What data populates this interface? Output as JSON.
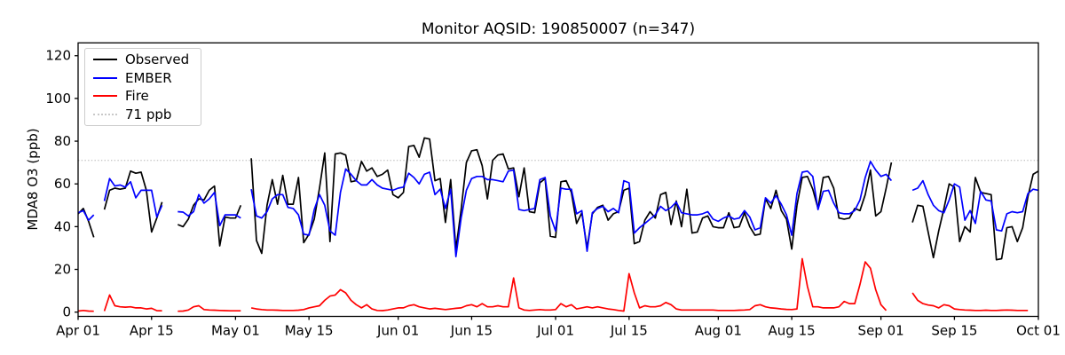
{
  "chart_data": {
    "type": "line",
    "title": "Monitor AQSID: 190850007 (n=347)",
    "ylabel": "MDA8 O3 (ppb)",
    "xlabel": "",
    "grid": false,
    "legend_position": "upper left",
    "total_days": 183,
    "ylim": [
      -2,
      126
    ],
    "y_ticks": [
      0,
      20,
      40,
      60,
      80,
      100,
      120
    ],
    "x_tick_labels": [
      "Apr 01",
      "Apr 15",
      "May 01",
      "May 15",
      "Jun 01",
      "Jun 15",
      "Jul 01",
      "Jul 15",
      "Aug 01",
      "Aug 15",
      "Sep 01",
      "Sep 15",
      "Oct 01"
    ],
    "x_tick_days": [
      0,
      14,
      30,
      44,
      61,
      75,
      91,
      105,
      122,
      136,
      153,
      167,
      183
    ],
    "threshold": {
      "label": "71 ppb",
      "value": 71,
      "color": "#c8c8c8"
    },
    "legend": {
      "items": [
        "Observed",
        "EMBER",
        "Fire",
        "71 ppb"
      ]
    },
    "series": [
      {
        "name": "Observed",
        "color": "#000000",
        "segments": [
          {
            "start_day": 0,
            "values": [
              46,
              48.5,
              42.5,
              35
            ]
          },
          {
            "start_day": 5,
            "values": [
              48,
              57,
              58,
              57.5,
              58,
              66,
              65,
              65.5,
              57,
              37.5,
              44,
              51.5
            ]
          },
          {
            "start_day": 19,
            "values": [
              41,
              40,
              43.5,
              50,
              53,
              52.5,
              57,
              59,
              31,
              44.5,
              44,
              44,
              50
            ]
          },
          {
            "start_day": 33,
            "values": [
              72,
              33.5,
              27.5,
              50,
              62,
              50.5,
              64,
              50.5,
              50.5,
              63,
              32.5,
              36.5,
              43.5,
              58,
              74.5,
              33,
              74,
              74.5,
              73.5,
              61,
              61.5,
              70.5,
              66,
              67.5,
              63.5,
              64.5,
              66.5,
              55,
              53.5,
              56,
              77.5,
              78,
              72.5,
              81.5,
              81,
              61.5,
              62.5,
              42,
              62,
              29.5,
              48,
              70,
              75.5,
              76,
              68.5,
              53,
              71,
              73.5,
              74,
              67,
              67.5,
              54,
              67.5,
              47,
              46.5,
              60.5,
              62.5,
              35.5,
              35,
              61,
              61.5,
              56,
              41.5,
              46.5,
              30,
              46,
              49,
              50,
              43,
              46,
              47,
              57,
              58,
              32,
              33,
              43,
              47,
              44,
              55,
              56,
              41,
              52,
              40,
              57.5,
              37,
              37.5,
              44,
              45,
              40,
              39.5,
              39.5,
              46.5,
              39.5,
              40,
              46.5,
              40,
              36,
              36.5,
              53,
              48.5,
              57,
              47.5,
              43.5,
              29.5,
              50,
              63,
              63.5,
              57.5,
              48.5,
              63,
              63.5,
              58,
              44,
              43.5,
              44,
              48.5,
              47.5,
              55,
              66.5,
              45,
              47,
              58,
              70
            ]
          },
          {
            "start_day": 159,
            "values": [
              42,
              50,
              49.5,
              37.5,
              25.5,
              38,
              48.5,
              60,
              58.5,
              33,
              40,
              37.5,
              63,
              56,
              55.5,
              55,
              24.5,
              25,
              39.5,
              40,
              33,
              39.5,
              54,
              64.5,
              66
            ]
          }
        ]
      },
      {
        "name": "EMBER",
        "color": "#0000ff",
        "segments": [
          {
            "start_day": 0,
            "values": [
              46.5,
              47.5,
              43,
              45.5
            ]
          },
          {
            "start_day": 5,
            "values": [
              52,
              62.5,
              59,
              59.5,
              58.5,
              61,
              53.5,
              57,
              57,
              57,
              44.5,
              50
            ]
          },
          {
            "start_day": 19,
            "values": [
              47,
              46.8,
              45,
              47,
              55,
              51,
              53,
              56,
              40.5,
              45.5,
              45.5,
              45.5,
              44
            ]
          },
          {
            "start_day": 33,
            "values": [
              57.5,
              45,
              44,
              47,
              53,
              55,
              55,
              49,
              48.5,
              45.5,
              36.5,
              36,
              48,
              55,
              50,
              38,
              36,
              56,
              67,
              64.5,
              61.5,
              59.5,
              59.5,
              62,
              59.5,
              58,
              57.5,
              57,
              58,
              58.5,
              65,
              63,
              60,
              64.5,
              65.5,
              55,
              57.5,
              48.5,
              57.5,
              26,
              44,
              57,
              62.5,
              63.5,
              63.5,
              62,
              62,
              61.5,
              61,
              66,
              66.5,
              48,
              47.5,
              48,
              48.5,
              62,
              63,
              45,
              38,
              58,
              57.5,
              57.5,
              46,
              47.5,
              28.5,
              46.5,
              48.5,
              49.5,
              47,
              48.5,
              46.5,
              61.5,
              60.5,
              37,
              39.5,
              41.5,
              43.5,
              45.5,
              49.5,
              47.5,
              49,
              51.5,
              46.5,
              46,
              45.5,
              45.5,
              46,
              47,
              43.5,
              42.5,
              44,
              45,
              43.5,
              44,
              47.5,
              44.5,
              38.5,
              39.5,
              53.5,
              51,
              54.5,
              50.5,
              45.5,
              36,
              55.5,
              65.5,
              66,
              63.5,
              48,
              56.5,
              57,
              51,
              46.5,
              46,
              46,
              47.5,
              52.5,
              63,
              70.5,
              66.5,
              63.5,
              64.5,
              61.5
            ]
          },
          {
            "start_day": 159,
            "values": [
              57,
              58,
              61.5,
              55,
              50,
              47.5,
              46.5,
              52.5,
              60,
              58.5,
              43,
              47.5,
              41.5,
              56.5,
              52.5,
              52,
              38.5,
              38,
              46,
              47,
              46.5,
              47,
              55.5,
              57.5,
              57
            ]
          }
        ]
      },
      {
        "name": "Fire",
        "color": "#ff0000",
        "segments": [
          {
            "start_day": 0,
            "values": [
              0.5,
              0.8,
              0.5,
              0.4
            ]
          },
          {
            "start_day": 5,
            "values": [
              0.5,
              8,
              3,
              2.5,
              2.3,
              2.5,
              2,
              2,
              1.5,
              1.8,
              0.7,
              0.6
            ]
          },
          {
            "start_day": 19,
            "values": [
              0.4,
              0.5,
              1,
              2.5,
              3,
              1.2,
              1,
              0.9,
              0.8,
              0.7,
              0.6,
              0.6,
              0.6
            ]
          },
          {
            "start_day": 33,
            "values": [
              2,
              1.5,
              1.2,
              1,
              1,
              0.9,
              0.8,
              0.8,
              0.8,
              0.9,
              1.2,
              2,
              2.5,
              3,
              5.5,
              7.5,
              8,
              10.5,
              9,
              5.5,
              3.5,
              2,
              3.5,
              1.5,
              0.8,
              0.7,
              1,
              1.5,
              2,
              2,
              3,
              3.5,
              2.5,
              2,
              1.5,
              1.8,
              1.5,
              1.2,
              1.5,
              1.8,
              2,
              3,
              3.5,
              2.5,
              4,
              2.5,
              2.5,
              3,
              2.5,
              2.5,
              16,
              2,
              1,
              0.8,
              1,
              1.2,
              1,
              1,
              1.2,
              4,
              2.5,
              3.5,
              1.5,
              2,
              2.5,
              2,
              2.5,
              2,
              1.5,
              1.2,
              0.8,
              0.5,
              18,
              9,
              2,
              3,
              2.5,
              2.5,
              3,
              4.5,
              3.5,
              1.5,
              1,
              1,
              1,
              1,
              1,
              1,
              1,
              0.8,
              0.8,
              0.8,
              0.8,
              0.9,
              1,
              1.2,
              3,
              3.5,
              2.5,
              2,
              1.8,
              1.5,
              1.3,
              1.2,
              1.5,
              25,
              12,
              2.5,
              2.5,
              2,
              2,
              2,
              2.5,
              5,
              4,
              4,
              13,
              23.5,
              20.5,
              10.5,
              3.5,
              0.8
            ]
          },
          {
            "start_day": 159,
            "values": [
              9,
              5.5,
              4,
              3.3,
              3,
              2,
              3.5,
              3,
              1.5,
              1.2,
              1,
              0.9,
              0.8,
              0.8,
              0.9,
              0.8,
              0.8,
              0.9,
              1,
              0.9,
              0.8,
              0.8,
              0.8
            ]
          }
        ]
      }
    ]
  }
}
